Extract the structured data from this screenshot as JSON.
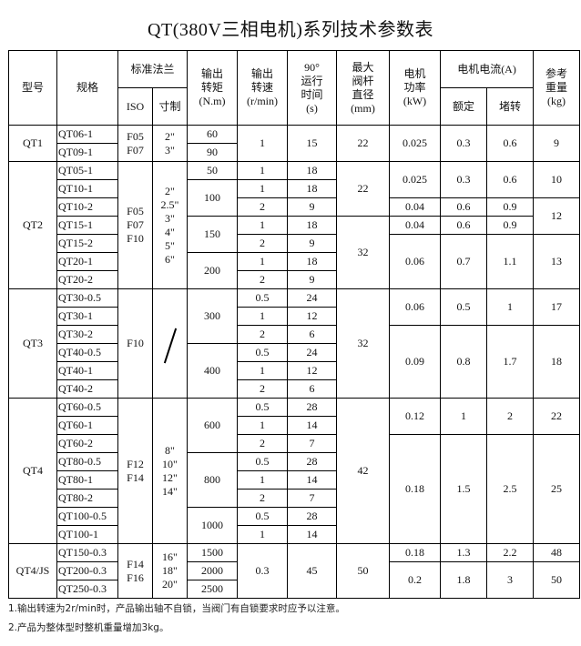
{
  "title": "QT(380V三相电机)系列技术参数表",
  "header": {
    "model": "型号",
    "spec": "规格",
    "flange": "标准法兰",
    "iso": "ISO",
    "inch": "寸制",
    "torque": "输出\n转矩\n(N.m)",
    "speed": "输出\n转速\n(r/min)",
    "time": "90°\n运行\n时间\n(s)",
    "stem": "最大\n阀杆\n直径\n(mm)",
    "power": "电机\n功率\n(kW)",
    "current": "电机电流(A)",
    "rated": "额定",
    "stall": "堵转",
    "weight": "参考\n重量\n(kg)"
  },
  "rows": [
    [
      {
        "t": "QT1",
        "rs": 2
      },
      {
        "t": "QT06-1"
      },
      {
        "t": "F05\nF07",
        "rs": 2
      },
      {
        "t": "2\"\n3\"",
        "rs": 2
      },
      {
        "t": "60"
      },
      {
        "t": "1",
        "rs": 2
      },
      {
        "t": "15",
        "rs": 2
      },
      {
        "t": "22",
        "rs": 2
      },
      {
        "t": "0.025",
        "rs": 2
      },
      {
        "t": "0.3",
        "rs": 2
      },
      {
        "t": "0.6",
        "rs": 2
      },
      {
        "t": "9",
        "rs": 2
      }
    ],
    [
      {
        "t": "QT09-1"
      },
      {
        "t": "90"
      }
    ],
    [
      {
        "t": "QT2",
        "rs": 7
      },
      {
        "t": "QT05-1"
      },
      {
        "t": "F05\nF07\nF10",
        "rs": 7
      },
      {
        "t": "2\"\n2.5\"\n3\"\n4\"\n5\"\n6\"",
        "rs": 7
      },
      {
        "t": "50"
      },
      {
        "t": "1"
      },
      {
        "t": "18"
      },
      {
        "t": "22",
        "rs": 3
      },
      {
        "t": "0.025",
        "rs": 2
      },
      {
        "t": "0.3",
        "rs": 2
      },
      {
        "t": "0.6",
        "rs": 2
      },
      {
        "t": "10",
        "rs": 2
      }
    ],
    [
      {
        "t": "QT10-1"
      },
      {
        "t": "100",
        "rs": 2
      },
      {
        "t": "1"
      },
      {
        "t": "18"
      }
    ],
    [
      {
        "t": "QT10-2"
      },
      {
        "t": "2"
      },
      {
        "t": "9"
      },
      {
        "t": "0.04"
      },
      {
        "t": "0.6"
      },
      {
        "t": "0.9"
      },
      {
        "t": "12",
        "rs": 2
      }
    ],
    [
      {
        "t": "QT15-1"
      },
      {
        "t": "150",
        "rs": 2
      },
      {
        "t": "1"
      },
      {
        "t": "18"
      },
      {
        "t": "32",
        "rs": 4
      },
      {
        "t": "0.04"
      },
      {
        "t": "0.6"
      },
      {
        "t": "0.9"
      }
    ],
    [
      {
        "t": "QT15-2"
      },
      {
        "t": "2"
      },
      {
        "t": "9"
      },
      {
        "t": "0.06",
        "rs": 3
      },
      {
        "t": "0.7",
        "rs": 3
      },
      {
        "t": "1.1",
        "rs": 3
      },
      {
        "t": "13",
        "rs": 3
      }
    ],
    [
      {
        "t": "QT20-1"
      },
      {
        "t": "200",
        "rs": 2
      },
      {
        "t": "1"
      },
      {
        "t": "18"
      }
    ],
    [
      {
        "t": "QT20-2"
      },
      {
        "t": "2"
      },
      {
        "t": "9"
      }
    ],
    [
      {
        "t": "QT3",
        "rs": 6
      },
      {
        "t": "QT30-0.5"
      },
      {
        "t": "F10",
        "rs": 6
      },
      {
        "t": "/",
        "rs": 6,
        "slash": true
      },
      {
        "t": "300",
        "rs": 3
      },
      {
        "t": "0.5"
      },
      {
        "t": "24"
      },
      {
        "t": "32",
        "rs": 6
      },
      {
        "t": "0.06",
        "rs": 2
      },
      {
        "t": "0.5",
        "rs": 2
      },
      {
        "t": "1",
        "rs": 2
      },
      {
        "t": "17",
        "rs": 2
      }
    ],
    [
      {
        "t": "QT30-1"
      },
      {
        "t": "1"
      },
      {
        "t": "12"
      }
    ],
    [
      {
        "t": "QT30-2"
      },
      {
        "t": "2"
      },
      {
        "t": "6"
      },
      {
        "t": "0.09",
        "rs": 4
      },
      {
        "t": "0.8",
        "rs": 4
      },
      {
        "t": "1.7",
        "rs": 4
      },
      {
        "t": "18",
        "rs": 4
      }
    ],
    [
      {
        "t": "QT40-0.5"
      },
      {
        "t": "400",
        "rs": 3
      },
      {
        "t": "0.5"
      },
      {
        "t": "24"
      }
    ],
    [
      {
        "t": "QT40-1"
      },
      {
        "t": "1"
      },
      {
        "t": "12"
      }
    ],
    [
      {
        "t": "QT40-2"
      },
      {
        "t": "2"
      },
      {
        "t": "6"
      }
    ],
    [
      {
        "t": "QT4",
        "rs": 8
      },
      {
        "t": "QT60-0.5"
      },
      {
        "t": "F12\nF14",
        "rs": 8
      },
      {
        "t": "8\"\n10\"\n12\"\n14\"",
        "rs": 8
      },
      {
        "t": "600",
        "rs": 3
      },
      {
        "t": "0.5"
      },
      {
        "t": "28"
      },
      {
        "t": "42",
        "rs": 8
      },
      {
        "t": "0.12",
        "rs": 2
      },
      {
        "t": "1",
        "rs": 2
      },
      {
        "t": "2",
        "rs": 2
      },
      {
        "t": "22",
        "rs": 2
      }
    ],
    [
      {
        "t": "QT60-1"
      },
      {
        "t": "1"
      },
      {
        "t": "14"
      }
    ],
    [
      {
        "t": "QT60-2"
      },
      {
        "t": "2"
      },
      {
        "t": "7"
      },
      {
        "t": "0.18",
        "rs": 6
      },
      {
        "t": "1.5",
        "rs": 6
      },
      {
        "t": "2.5",
        "rs": 6
      },
      {
        "t": "25",
        "rs": 6
      }
    ],
    [
      {
        "t": "QT80-0.5"
      },
      {
        "t": "800",
        "rs": 3
      },
      {
        "t": "0.5"
      },
      {
        "t": "28"
      }
    ],
    [
      {
        "t": "QT80-1"
      },
      {
        "t": "1"
      },
      {
        "t": "14"
      }
    ],
    [
      {
        "t": "QT80-2"
      },
      {
        "t": "2"
      },
      {
        "t": "7"
      }
    ],
    [
      {
        "t": "QT100-0.5"
      },
      {
        "t": "1000",
        "rs": 2
      },
      {
        "t": "0.5"
      },
      {
        "t": "28"
      }
    ],
    [
      {
        "t": "QT100-1"
      },
      {
        "t": "1"
      },
      {
        "t": "14"
      }
    ],
    [
      {
        "t": "QT4/JS",
        "rs": 3
      },
      {
        "t": "QT150-0.3"
      },
      {
        "t": "F14\nF16",
        "rs": 3
      },
      {
        "t": "16\"\n18\"\n20\"",
        "rs": 3
      },
      {
        "t": "1500"
      },
      {
        "t": "0.3",
        "rs": 3
      },
      {
        "t": "45",
        "rs": 3
      },
      {
        "t": "50",
        "rs": 3
      },
      {
        "t": "0.18"
      },
      {
        "t": "1.3"
      },
      {
        "t": "2.2"
      },
      {
        "t": "48"
      }
    ],
    [
      {
        "t": "QT200-0.3"
      },
      {
        "t": "2000"
      },
      {
        "t": "0.2",
        "rs": 2
      },
      {
        "t": "1.8",
        "rs": 2
      },
      {
        "t": "3",
        "rs": 2
      },
      {
        "t": "50",
        "rs": 2
      }
    ],
    [
      {
        "t": "QT250-0.3"
      },
      {
        "t": "2500"
      }
    ]
  ],
  "notes": [
    "1.输出转速为2r/min时，产品输出轴不自锁，当阀门有自锁要求时应予以注意。",
    "2.产品为整体型时整机重量增加3kg。"
  ]
}
